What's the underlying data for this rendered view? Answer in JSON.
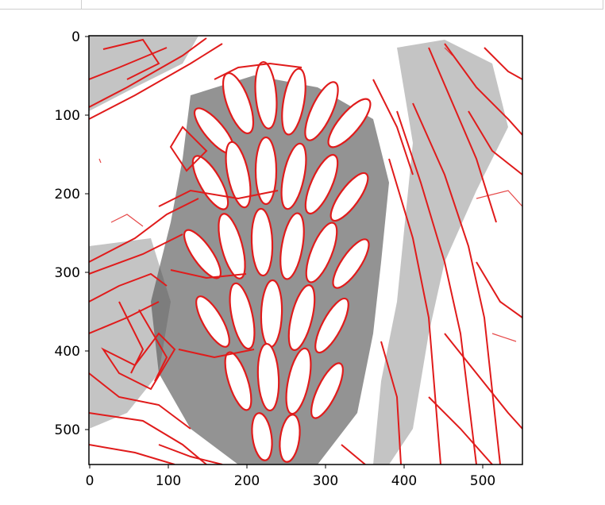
{
  "notebook": {
    "output_figure": {
      "description_icon": "edge-detection-image-icon",
      "x_ticks": [
        "0",
        "100",
        "200",
        "300",
        "400",
        "500"
      ],
      "y_ticks": [
        "0",
        "100",
        "200",
        "300",
        "400",
        "500"
      ],
      "colors": {
        "edges": "#e01b1b",
        "shading": "#3a3a3a",
        "background": "#ffffff",
        "frame": "#000000"
      }
    }
  }
}
